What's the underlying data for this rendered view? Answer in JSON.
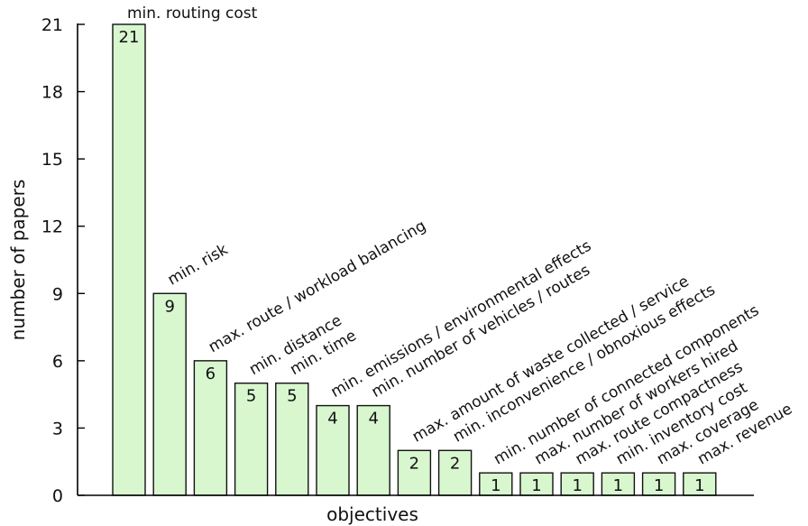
{
  "chart_data": {
    "type": "bar",
    "ylabel": "number of papers",
    "xlabel": "objectives",
    "ylim": [
      0,
      21
    ],
    "yticks": [
      0,
      3,
      6,
      9,
      12,
      15,
      18,
      21
    ],
    "grid": false,
    "categories": [
      "min. routing cost",
      "min. risk",
      "max. route / workload balancing",
      "min. distance",
      "min. time",
      "min. emissions / environmental effects",
      "min. number of vehicles / routes",
      "max. amount of waste collected / service",
      "min. inconvenience / obnoxious effects",
      "min. number of connected components",
      "max. number of workers hired",
      "max. route compactness",
      "min. inventory cost",
      "max. coverage",
      "max. revenue"
    ],
    "values": [
      21,
      9,
      6,
      5,
      5,
      4,
      4,
      2,
      2,
      1,
      1,
      1,
      1,
      1,
      1
    ],
    "colors": {
      "bar_fill": "#d8f7cf",
      "bar_stroke": "#111111"
    }
  }
}
